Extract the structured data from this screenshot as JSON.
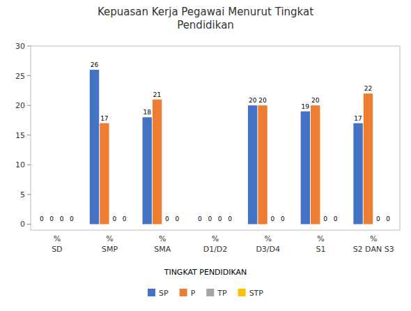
{
  "chart_data": {
    "type": "bar",
    "title": "Kepuasan Kerja Pegawai Menurut Tingkat\nPendidikan",
    "x_label": "TINGKAT PENDIDIKAN",
    "categories": [
      "%\nSD",
      "%\nSMP",
      "%\nSMA",
      "%\nD1/D2",
      "%\nD3/D4",
      "%\nS1",
      "%\nS2 DAN S3"
    ],
    "series": [
      {
        "name": "SP",
        "color": "#4472C4",
        "values": [
          0,
          26,
          18,
          0,
          20,
          19,
          17
        ]
      },
      {
        "name": "P",
        "color": "#ED7D31",
        "values": [
          0,
          17,
          21,
          0,
          20,
          20,
          22
        ]
      },
      {
        "name": "TP",
        "color": "#A5A5A5",
        "values": [
          0,
          0,
          0,
          0,
          0,
          0,
          0
        ]
      },
      {
        "name": "STP",
        "color": "#FFC000",
        "values": [
          0,
          0,
          0,
          0,
          0,
          0,
          0
        ]
      }
    ],
    "ylim": [
      -1,
      30
    ],
    "yticks": [
      0,
      5,
      10,
      15,
      20,
      25,
      30
    ],
    "grid": false,
    "legend": "bottom",
    "data_labels": true
  }
}
